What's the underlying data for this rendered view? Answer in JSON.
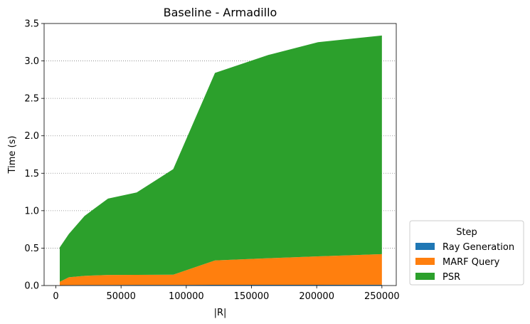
{
  "chart_data": {
    "type": "area",
    "stacked": true,
    "title": "Baseline - Armadillo",
    "xlabel": "|R|",
    "ylabel": "Time (s)",
    "xlim": [
      -9000,
      261000
    ],
    "ylim": [
      0,
      3.5
    ],
    "xticks": [
      0,
      50000,
      100000,
      150000,
      200000,
      250000
    ],
    "xtick_labels": [
      "0",
      "50000",
      "100000",
      "150000",
      "200000",
      "250000"
    ],
    "yticks": [
      0.0,
      0.5,
      1.0,
      1.5,
      2.0,
      2.5,
      3.0,
      3.5
    ],
    "ytick_labels": [
      "0.0",
      "0.5",
      "1.0",
      "1.5",
      "2.0",
      "2.5",
      "3.0",
      "3.5"
    ],
    "grid": "y-dotted",
    "x": [
      3000,
      10000,
      22000,
      40000,
      62000,
      90000,
      122000,
      163000,
      201000,
      250000
    ],
    "series": [
      {
        "name": "Ray Generation",
        "color": "#1f77b4",
        "values": [
          0.005,
          0.006,
          0.007,
          0.007,
          0.008,
          0.008,
          0.009,
          0.01,
          0.01,
          0.011
        ]
      },
      {
        "name": "MARF Query",
        "color": "#ff7f0e",
        "values": [
          0.045,
          0.104,
          0.123,
          0.135,
          0.135,
          0.137,
          0.326,
          0.355,
          0.38,
          0.409
        ]
      },
      {
        "name": "PSR",
        "color": "#2ca02c",
        "values": [
          0.46,
          0.58,
          0.8,
          1.02,
          1.1,
          1.41,
          2.505,
          2.715,
          2.86,
          2.92
        ]
      }
    ],
    "legend": {
      "title": "Step",
      "location": "outside-bottom-right"
    }
  }
}
